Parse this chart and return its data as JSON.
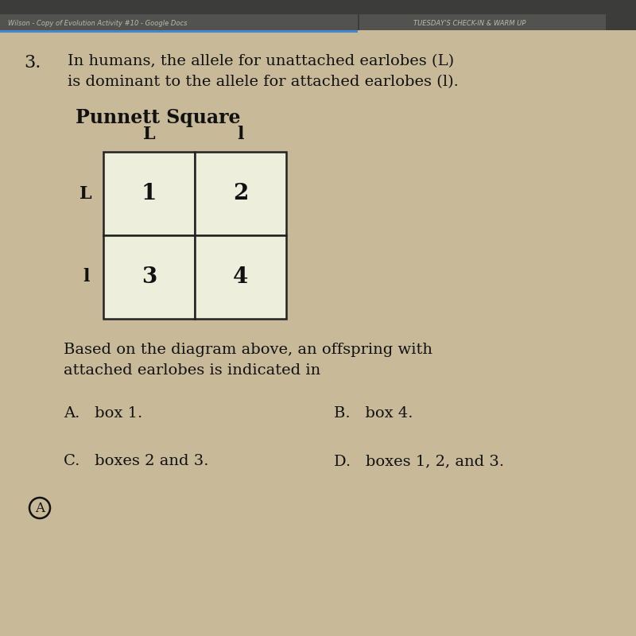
{
  "page_bg": "#c8b998",
  "browser_bar_color": "#3a3a3a",
  "browser_tab_color": "#555550",
  "question_number": "3.",
  "question_text_line1": "In humans, the allele for unattached earlobes (L)",
  "question_text_line2": "is dominant to the allele for attached earlobes (l).",
  "punnett_title": "Punnett Square",
  "col_labels": [
    "L",
    "l"
  ],
  "row_labels": [
    "L",
    "l"
  ],
  "cell_values": [
    [
      "1",
      "2"
    ],
    [
      "3",
      "4"
    ]
  ],
  "body_text_line1": "Based on the diagram above, an offspring with",
  "body_text_line2": "attached earlobes is indicated in",
  "answer_A": "A.   box 1.",
  "answer_B": "B.   box 4.",
  "answer_C": "C.   boxes 2 and 3.",
  "answer_D": "D.   boxes 1, 2, and 3.",
  "text_color": "#111111",
  "grid_color": "#222222",
  "cell_bg": "#eeeedd",
  "browser_text": "#cccccc",
  "browser_text2": "#dddddd"
}
